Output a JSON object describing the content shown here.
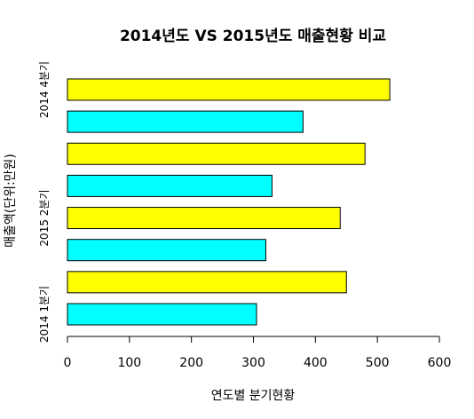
{
  "chart_data": {
    "type": "bar",
    "orientation": "horizontal",
    "title": "2014년도 VS 2015년도 매출현황 비교",
    "xlabel": "연도별 분기현황",
    "ylabel": "매출액(단위:만원)",
    "xlim": [
      0,
      600
    ],
    "xticks": [
      "0",
      "100",
      "200",
      "300",
      "400",
      "500",
      "600"
    ],
    "bars": [
      {
        "value": 305,
        "color": "#00FFFF"
      },
      {
        "value": 450,
        "color": "#FFFF00"
      },
      {
        "value": 320,
        "color": "#00FFFF"
      },
      {
        "value": 440,
        "color": "#FFFF00"
      },
      {
        "value": 330,
        "color": "#00FFFF"
      },
      {
        "value": 480,
        "color": "#FFFF00"
      },
      {
        "value": 380,
        "color": "#00FFFF"
      },
      {
        "value": 520,
        "color": "#FFFF00"
      }
    ],
    "category_labels": [
      {
        "text": "2014 1분기",
        "bar_index": 0
      },
      {
        "text": "2015 2분기",
        "bar_index": 3
      },
      {
        "text": "2014 4분기",
        "bar_index": 7
      }
    ],
    "grid": false,
    "legend": "none"
  }
}
